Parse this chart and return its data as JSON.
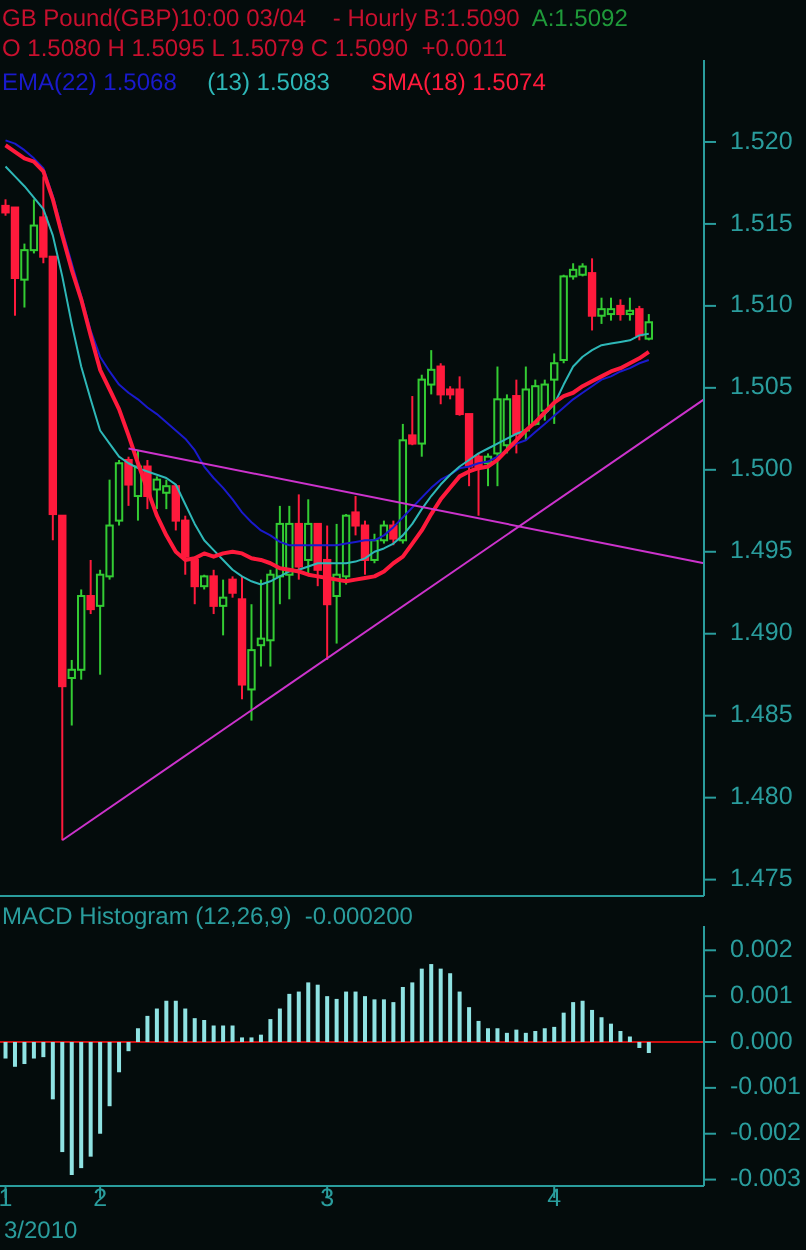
{
  "chart_data": [
    {
      "type": "candlestick",
      "title": "GB Pound(GBP)10:00 03/04    - Hourly B:1.5090",
      "subtitle": "O 1.5080 H 1.5095 L 1.5079 C 1.5090  +0.0011",
      "annotations": [
        "A:1.5092"
      ],
      "x": [
        "2010-03-01T14:00",
        "2010-03-01T15:00",
        "2010-03-01T16:00",
        "2010-03-01T17:00",
        "2010-03-01T18:00",
        "2010-03-01T19:00",
        "2010-03-01T20:00",
        "2010-03-01T21:00",
        "2010-03-01T22:00",
        "2010-03-01T23:00",
        "2010-03-02T00:00",
        "2010-03-02T01:00",
        "2010-03-02T02:00",
        "2010-03-02T03:00",
        "2010-03-02T04:00",
        "2010-03-02T05:00",
        "2010-03-02T06:00",
        "2010-03-02T07:00",
        "2010-03-02T08:00",
        "2010-03-02T09:00",
        "2010-03-02T10:00",
        "2010-03-02T11:00",
        "2010-03-02T12:00",
        "2010-03-02T13:00",
        "2010-03-02T14:00",
        "2010-03-02T15:00",
        "2010-03-02T16:00",
        "2010-03-02T17:00",
        "2010-03-02T18:00",
        "2010-03-02T19:00",
        "2010-03-02T20:00",
        "2010-03-02T21:00",
        "2010-03-02T22:00",
        "2010-03-02T23:00",
        "2010-03-03T00:00",
        "2010-03-03T01:00",
        "2010-03-03T02:00",
        "2010-03-03T03:00",
        "2010-03-03T04:00",
        "2010-03-03T05:00",
        "2010-03-03T06:00",
        "2010-03-03T07:00",
        "2010-03-03T08:00",
        "2010-03-03T09:00",
        "2010-03-03T10:00",
        "2010-03-03T11:00",
        "2010-03-03T12:00",
        "2010-03-03T13:00",
        "2010-03-03T14:00",
        "2010-03-03T15:00",
        "2010-03-03T16:00",
        "2010-03-03T17:00",
        "2010-03-03T18:00",
        "2010-03-03T19:00",
        "2010-03-03T20:00",
        "2010-03-03T21:00",
        "2010-03-03T22:00",
        "2010-03-03T23:00",
        "2010-03-04T00:00",
        "2010-03-04T01:00",
        "2010-03-04T02:00",
        "2010-03-04T03:00",
        "2010-03-04T04:00",
        "2010-03-04T05:00",
        "2010-03-04T06:00",
        "2010-03-04T07:00",
        "2010-03-04T08:00",
        "2010-03-04T09:00",
        "2010-03-04T10:00"
      ],
      "xlim": [
        "2010-03-01T13:25",
        "2010-03-04T15:50"
      ],
      "ohlc": [
        [
          1.5161,
          1.5165,
          1.5155,
          1.5157
        ],
        [
          1.516,
          1.516,
          1.5094,
          1.5117
        ],
        [
          1.5116,
          1.5138,
          1.5099,
          1.5134
        ],
        [
          1.5134,
          1.5165,
          1.5132,
          1.5149
        ],
        [
          1.5154,
          1.5179,
          1.5126,
          1.513
        ],
        [
          1.513,
          1.513,
          1.4957,
          1.4973
        ],
        [
          1.4972,
          1.4972,
          1.4774,
          1.4868
        ],
        [
          1.4873,
          1.4884,
          1.4844,
          1.4878
        ],
        [
          1.4878,
          1.4927,
          1.4872,
          1.4923
        ],
        [
          1.4923,
          1.4945,
          1.4912,
          1.4915
        ],
        [
          1.4917,
          1.4939,
          1.4875,
          1.4936
        ],
        [
          1.4935,
          1.4994,
          1.4933,
          1.4966
        ],
        [
          1.4969,
          1.5006,
          1.4966,
          1.5004
        ],
        [
          1.5006,
          1.5008,
          1.4978,
          1.4991
        ],
        [
          1.4984,
          1.5012,
          1.4969,
          1.5002
        ],
        [
          1.5002,
          1.5006,
          1.4976,
          1.4984
        ],
        [
          1.4988,
          1.4996,
          1.4976,
          1.4994
        ],
        [
          1.4986,
          1.4994,
          1.4976,
          1.499
        ],
        [
          1.499,
          1.4991,
          1.4963,
          1.4969
        ],
        [
          1.4969,
          1.4972,
          1.4936,
          1.4947
        ],
        [
          1.4945,
          1.4947,
          1.4918,
          1.4929
        ],
        [
          1.4929,
          1.4936,
          1.4927,
          1.4935
        ],
        [
          1.4935,
          1.4939,
          1.4912,
          1.4917
        ],
        [
          1.4917,
          1.4933,
          1.4899,
          1.4922
        ],
        [
          1.4933,
          1.4935,
          1.4922,
          1.4925
        ],
        [
          1.4921,
          1.4935,
          1.486,
          1.4869
        ],
        [
          1.4866,
          1.4918,
          1.4847,
          1.489
        ],
        [
          1.4893,
          1.4933,
          1.488,
          1.4897
        ],
        [
          1.4896,
          1.4939,
          1.488,
          1.4936
        ],
        [
          1.4935,
          1.4978,
          1.4918,
          1.4967
        ],
        [
          1.4936,
          1.4978,
          1.4921,
          1.4967
        ],
        [
          1.4967,
          1.4985,
          1.4933,
          1.4941
        ],
        [
          1.4945,
          1.4982,
          1.4936,
          1.4967
        ],
        [
          1.4967,
          1.4967,
          1.4929,
          1.4939
        ],
        [
          1.4945,
          1.4966,
          1.4884,
          1.4918
        ],
        [
          1.4923,
          1.4967,
          1.4894,
          1.4936
        ],
        [
          1.4935,
          1.4973,
          1.493,
          1.4972
        ],
        [
          1.4974,
          1.4984,
          1.496,
          1.4966
        ],
        [
          1.4966,
          1.4969,
          1.4936,
          1.4945
        ],
        [
          1.4945,
          1.4961,
          1.4943,
          1.4957
        ],
        [
          1.4957,
          1.4969,
          1.4955,
          1.4966
        ],
        [
          1.4966,
          1.4969,
          1.4954,
          1.4958
        ],
        [
          1.4957,
          1.5028,
          1.4955,
          1.5018
        ],
        [
          1.5021,
          1.5045,
          1.5015,
          1.5016
        ],
        [
          1.5016,
          1.5058,
          1.5008,
          1.5055
        ],
        [
          1.5052,
          1.5073,
          1.5046,
          1.5061
        ],
        [
          1.5063,
          1.5065,
          1.504,
          1.5046
        ],
        [
          1.5049,
          1.5051,
          1.5043,
          1.5046
        ],
        [
          1.5049,
          1.5057,
          1.5033,
          1.5034
        ],
        [
          1.5034,
          1.5034,
          1.499,
          1.5002
        ],
        [
          1.5008,
          1.501,
          1.4972,
          1.5002
        ],
        [
          1.5004,
          1.501,
          1.499,
          1.5008
        ],
        [
          1.501,
          1.5063,
          1.499,
          1.5043
        ],
        [
          1.5015,
          1.5046,
          1.501,
          1.5043
        ],
        [
          1.5045,
          1.5055,
          1.501,
          1.5022
        ],
        [
          1.5024,
          1.5063,
          1.5018,
          1.5049
        ],
        [
          1.5028,
          1.5055,
          1.5027,
          1.5051
        ],
        [
          1.5036,
          1.5055,
          1.503,
          1.5052
        ],
        [
          1.5055,
          1.5071,
          1.5028,
          1.5065
        ],
        [
          1.5067,
          1.5119,
          1.5065,
          1.5118
        ],
        [
          1.5118,
          1.5126,
          1.5116,
          1.5122
        ],
        [
          1.5119,
          1.5126,
          1.5118,
          1.5124
        ],
        [
          1.512,
          1.5129,
          1.5085,
          1.5094
        ],
        [
          1.5094,
          1.5105,
          1.5089,
          1.5098
        ],
        [
          1.5095,
          1.5105,
          1.5091,
          1.5098
        ],
        [
          1.51,
          1.5104,
          1.5091,
          1.5095
        ],
        [
          1.5095,
          1.5105,
          1.5091,
          1.5097
        ],
        [
          1.5098,
          1.51,
          1.5079,
          1.5082
        ],
        [
          1.508,
          1.5095,
          1.5079,
          1.509
        ]
      ],
      "colors": [
        "#ff1a3c",
        "#ff1a3c",
        "#33cc33",
        "#33cc33",
        "#ff1a3c",
        "#ff1a3c",
        "#ff1a3c",
        "#33cc33",
        "#33cc33",
        "#ff1a3c",
        "#33cc33",
        "#33cc33",
        "#33cc33",
        "#ff1a3c",
        "#33cc33",
        "#ff1a3c",
        "#33cc33",
        "#33cc33",
        "#ff1a3c",
        "#ff1a3c",
        "#ff1a3c",
        "#33cc33",
        "#ff1a3c",
        "#33cc33",
        "#ff1a3c",
        "#ff1a3c",
        "#33cc33",
        "#33cc33",
        "#33cc33",
        "#33cc33",
        "#33cc33",
        "#ff1a3c",
        "#33cc33",
        "#ff1a3c",
        "#ff1a3c",
        "#33cc33",
        "#33cc33",
        "#ff1a3c",
        "#ff1a3c",
        "#33cc33",
        "#33cc33",
        "#ff1a3c",
        "#33cc33",
        "#ff1a3c",
        "#33cc33",
        "#33cc33",
        "#ff1a3c",
        "#ff1a3c",
        "#ff1a3c",
        "#ff1a3c",
        "#ff1a3c",
        "#33cc33",
        "#33cc33",
        "#33cc33",
        "#ff1a3c",
        "#33cc33",
        "#33cc33",
        "#33cc33",
        "#33cc33",
        "#33cc33",
        "#33cc33",
        "#33cc33",
        "#ff1a3c",
        "#33cc33",
        "#33cc33",
        "#ff1a3c",
        "#33cc33",
        "#ff1a3c",
        "#33cc33"
      ],
      "series": [
        {
          "type": "line",
          "name": "EMA(22) 1.5068",
          "color": "#1a1acc",
          "values": [
            1.5201,
            1.5199,
            1.5195,
            1.519,
            1.5184,
            1.5167,
            1.5146,
            1.5126,
            1.5106,
            1.5085,
            1.5069,
            1.506,
            1.5052,
            1.5047,
            1.5043,
            1.5038,
            1.5034,
            1.5029,
            1.5024,
            1.5019,
            1.5012,
            1.5002,
            1.4995,
            1.4989,
            1.4982,
            1.4974,
            1.4968,
            1.4963,
            1.496,
            1.4956,
            1.4954,
            1.4954,
            1.4954,
            1.4954,
            1.4954,
            1.4954,
            1.4955,
            1.4956,
            1.4957,
            1.4957,
            1.496,
            1.4965,
            1.4971,
            1.4977,
            1.4983,
            1.4989,
            1.4994,
            1.4997,
            1.5001,
            1.5002,
            1.5004,
            1.5005,
            1.5008,
            1.5012,
            1.5016,
            1.5018,
            1.5023,
            1.5028,
            1.5033,
            1.5038,
            1.5043,
            1.5047,
            1.5051,
            1.5055,
            1.5057,
            1.506,
            1.5062,
            1.5065,
            1.5067
          ]
        },
        {
          "type": "line",
          "name": "(13) 1.5083",
          "color": "#2eb8b8",
          "values": [
            1.5185,
            1.5179,
            1.5173,
            1.5166,
            1.5159,
            1.5143,
            1.5118,
            1.5089,
            1.5063,
            1.5043,
            1.5024,
            1.5016,
            1.5008,
            1.5004,
            1.5001,
            1.4999,
            1.4997,
            1.4995,
            1.4991,
            1.4979,
            1.4967,
            1.4957,
            1.4951,
            1.4945,
            1.4939,
            1.4935,
            1.4932,
            1.493,
            1.4932,
            1.4935,
            1.4938,
            1.4939,
            1.4941,
            1.4943,
            1.4943,
            1.4943,
            1.4943,
            1.4944,
            1.4946,
            1.495,
            1.4952,
            1.4955,
            1.496,
            1.4967,
            1.4976,
            1.4984,
            1.4991,
            1.4997,
            1.5002,
            1.5006,
            1.501,
            1.5013,
            1.5016,
            1.5019,
            1.5022,
            1.5024,
            1.5029,
            1.5034,
            1.504,
            1.5052,
            1.5063,
            1.5069,
            1.5073,
            1.5076,
            1.5077,
            1.5078,
            1.5079,
            1.5082,
            1.5083
          ]
        },
        {
          "type": "line",
          "name": "SMA(18) 1.5074",
          "color": "#ff1a3c",
          "values": [
            1.5198,
            1.5194,
            1.519,
            1.5188,
            1.5182,
            1.5165,
            1.5143,
            1.5122,
            1.5104,
            1.5082,
            1.5061,
            1.5049,
            1.5037,
            1.5021,
            1.5004,
            1.4988,
            1.4972,
            1.496,
            1.495,
            1.4945,
            1.4946,
            1.4949,
            1.4947,
            1.4949,
            1.495,
            1.4949,
            1.4946,
            1.4945,
            1.4943,
            1.494,
            1.4939,
            1.4938,
            1.4936,
            1.4935,
            1.4934,
            1.4933,
            1.4932,
            1.4933,
            1.4934,
            1.4935,
            1.4938,
            1.4943,
            1.4947,
            1.4955,
            1.4963,
            1.4973,
            1.4982,
            1.4989,
            1.4996,
            1.4999,
            1.5001,
            1.5002,
            1.5006,
            1.5012,
            1.5018,
            1.5024,
            1.5029,
            1.5035,
            1.5041,
            1.5045,
            1.5047,
            1.5051,
            1.5054,
            1.5057,
            1.506,
            1.5062,
            1.5065,
            1.5068,
            1.5072
          ]
        },
        {
          "type": "line",
          "color": "#cc33cc",
          "x": [
            "2010-03-02T03:00",
            "2010-03-04T15:50"
          ],
          "values": [
            1.5013,
            1.4943
          ]
        },
        {
          "type": "line",
          "color": "#cc33cc",
          "x": [
            "2010-03-01T20:00",
            "2010-03-04T15:50"
          ],
          "values": [
            1.4774,
            1.5043
          ]
        }
      ],
      "ylim": [
        1.474,
        1.525
      ],
      "yticks": [
        {
          "value": 1.52,
          "label": "1.520"
        },
        1.515,
        {
          "value": 1.51,
          "label": "1.510"
        },
        1.505,
        {
          "value": 1.5,
          "label": "1.500"
        },
        1.495,
        {
          "value": 1.49,
          "label": "1.490"
        },
        1.485,
        {
          "value": 1.48,
          "label": "1.480"
        },
        1.475
      ],
      "legend": "top left",
      "tick_labels": "y"
    },
    {
      "type": "bar",
      "title": "MACD Histogram (12,26,9)  -0.000200",
      "annotations": [
        "3/2010"
      ],
      "x": [
        "2010-03-01T14:00",
        "2010-03-01T15:00",
        "2010-03-01T16:00",
        "2010-03-01T17:00",
        "2010-03-01T18:00",
        "2010-03-01T19:00",
        "2010-03-01T20:00",
        "2010-03-01T21:00",
        "2010-03-01T22:00",
        "2010-03-01T23:00",
        "2010-03-02T00:00",
        "2010-03-02T01:00",
        "2010-03-02T02:00",
        "2010-03-02T03:00",
        "2010-03-02T04:00",
        "2010-03-02T05:00",
        "2010-03-02T06:00",
        "2010-03-02T07:00",
        "2010-03-02T08:00",
        "2010-03-02T09:00",
        "2010-03-02T10:00",
        "2010-03-02T11:00",
        "2010-03-02T12:00",
        "2010-03-02T13:00",
        "2010-03-02T14:00",
        "2010-03-02T15:00",
        "2010-03-02T16:00",
        "2010-03-02T17:00",
        "2010-03-02T18:00",
        "2010-03-02T19:00",
        "2010-03-02T20:00",
        "2010-03-02T21:00",
        "2010-03-02T22:00",
        "2010-03-02T23:00",
        "2010-03-03T00:00",
        "2010-03-03T01:00",
        "2010-03-03T02:00",
        "2010-03-03T03:00",
        "2010-03-03T04:00",
        "2010-03-03T05:00",
        "2010-03-03T06:00",
        "2010-03-03T07:00",
        "2010-03-03T08:00",
        "2010-03-03T09:00",
        "2010-03-03T10:00",
        "2010-03-03T11:00",
        "2010-03-03T12:00",
        "2010-03-03T13:00",
        "2010-03-03T14:00",
        "2010-03-03T15:00",
        "2010-03-03T16:00",
        "2010-03-03T17:00",
        "2010-03-03T18:00",
        "2010-03-03T19:00",
        "2010-03-03T20:00",
        "2010-03-03T21:00",
        "2010-03-03T22:00",
        "2010-03-03T23:00",
        "2010-03-04T00:00",
        "2010-03-04T01:00",
        "2010-03-04T02:00",
        "2010-03-04T03:00",
        "2010-03-04T04:00",
        "2010-03-04T05:00",
        "2010-03-04T06:00",
        "2010-03-04T07:00",
        "2010-03-04T08:00",
        "2010-03-04T09:00",
        "2010-03-04T10:00"
      ],
      "xlim": [
        "2010-03-01T13:25",
        "2010-03-04T15:50"
      ],
      "xticks": [
        {
          "value": "2010-03-01T14:00",
          "label": "1"
        },
        {
          "value": "2010-03-02T00:00",
          "label": "2"
        },
        {
          "value": "2010-03-03T00:00",
          "label": "3"
        },
        {
          "value": "2010-03-04T00:00",
          "label": "4"
        }
      ],
      "values": [
        -0.00036,
        -0.00054,
        -0.00048,
        -0.00036,
        -0.00033,
        -0.00125,
        -0.0024,
        -0.0029,
        -0.00275,
        -0.0025,
        -0.002,
        -0.0014,
        -0.00066,
        -0.0002,
        0.0003,
        0.00057,
        0.00073,
        0.0009,
        0.0009,
        0.00073,
        0.00052,
        0.00048,
        0.00036,
        0.00036,
        0.00036,
        0.0001,
        0.0001,
        0.00016,
        0.0005,
        0.00073,
        0.00105,
        0.0011,
        0.0013,
        0.00125,
        0.001,
        0.00094,
        0.0011,
        0.0011,
        0.001,
        0.00093,
        0.00093,
        0.00087,
        0.0012,
        0.0013,
        0.0016,
        0.0017,
        0.0016,
        0.0015,
        0.0011,
        0.00076,
        0.00046,
        0.0003,
        0.0003,
        0.0002,
        0.00027,
        0.0002,
        0.00024,
        0.0003,
        0.00033,
        0.00064,
        0.00087,
        0.0009,
        0.0007,
        0.00054,
        0.0004,
        0.00024,
        0.00012,
        -0.00013,
        -0.00024
      ],
      "color": "#8fe3e3",
      "ylim": [
        -0.00314,
        0.00253
      ],
      "yticks": [
        0.002,
        0.001,
        {
          "value": 0,
          "label": "0.000"
        },
        -0.001,
        -0.002,
        -0.003
      ],
      "ref_lines": [
        {
          "axis": "y",
          "value": 0,
          "color": "#cc1111"
        }
      ]
    }
  ]
}
